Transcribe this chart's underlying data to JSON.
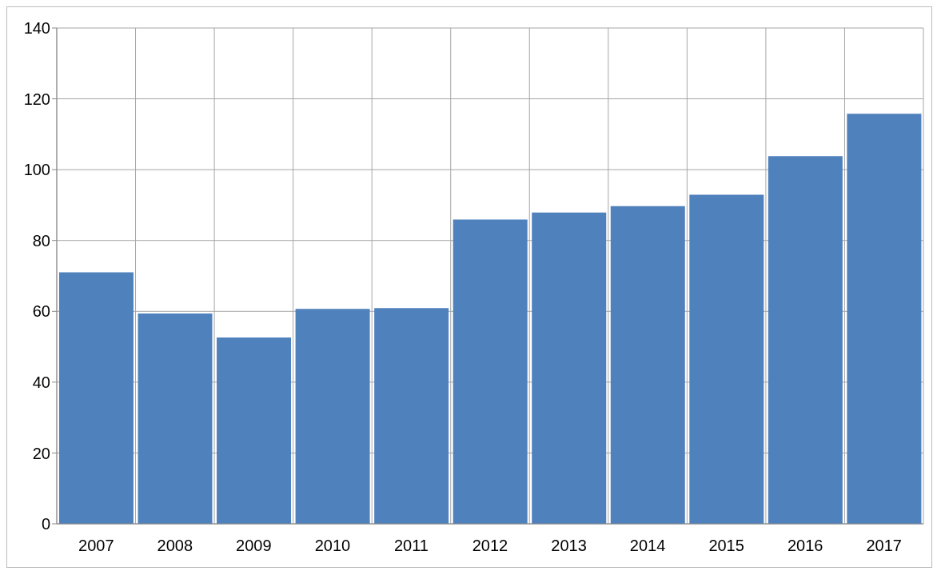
{
  "chart_data": {
    "type": "bar",
    "categories": [
      "2007",
      "2008",
      "2009",
      "2010",
      "2011",
      "2012",
      "2013",
      "2014",
      "2015",
      "2016",
      "2017"
    ],
    "values": [
      71,
      59.4,
      52.6,
      60.7,
      60.9,
      85.9,
      87.9,
      89.7,
      92.9,
      103.8,
      115.8
    ],
    "color": "#4f81bd",
    "ylim": [
      0,
      140
    ],
    "yticks": [
      0,
      20,
      40,
      60,
      80,
      100,
      120,
      140
    ],
    "grid": true
  }
}
